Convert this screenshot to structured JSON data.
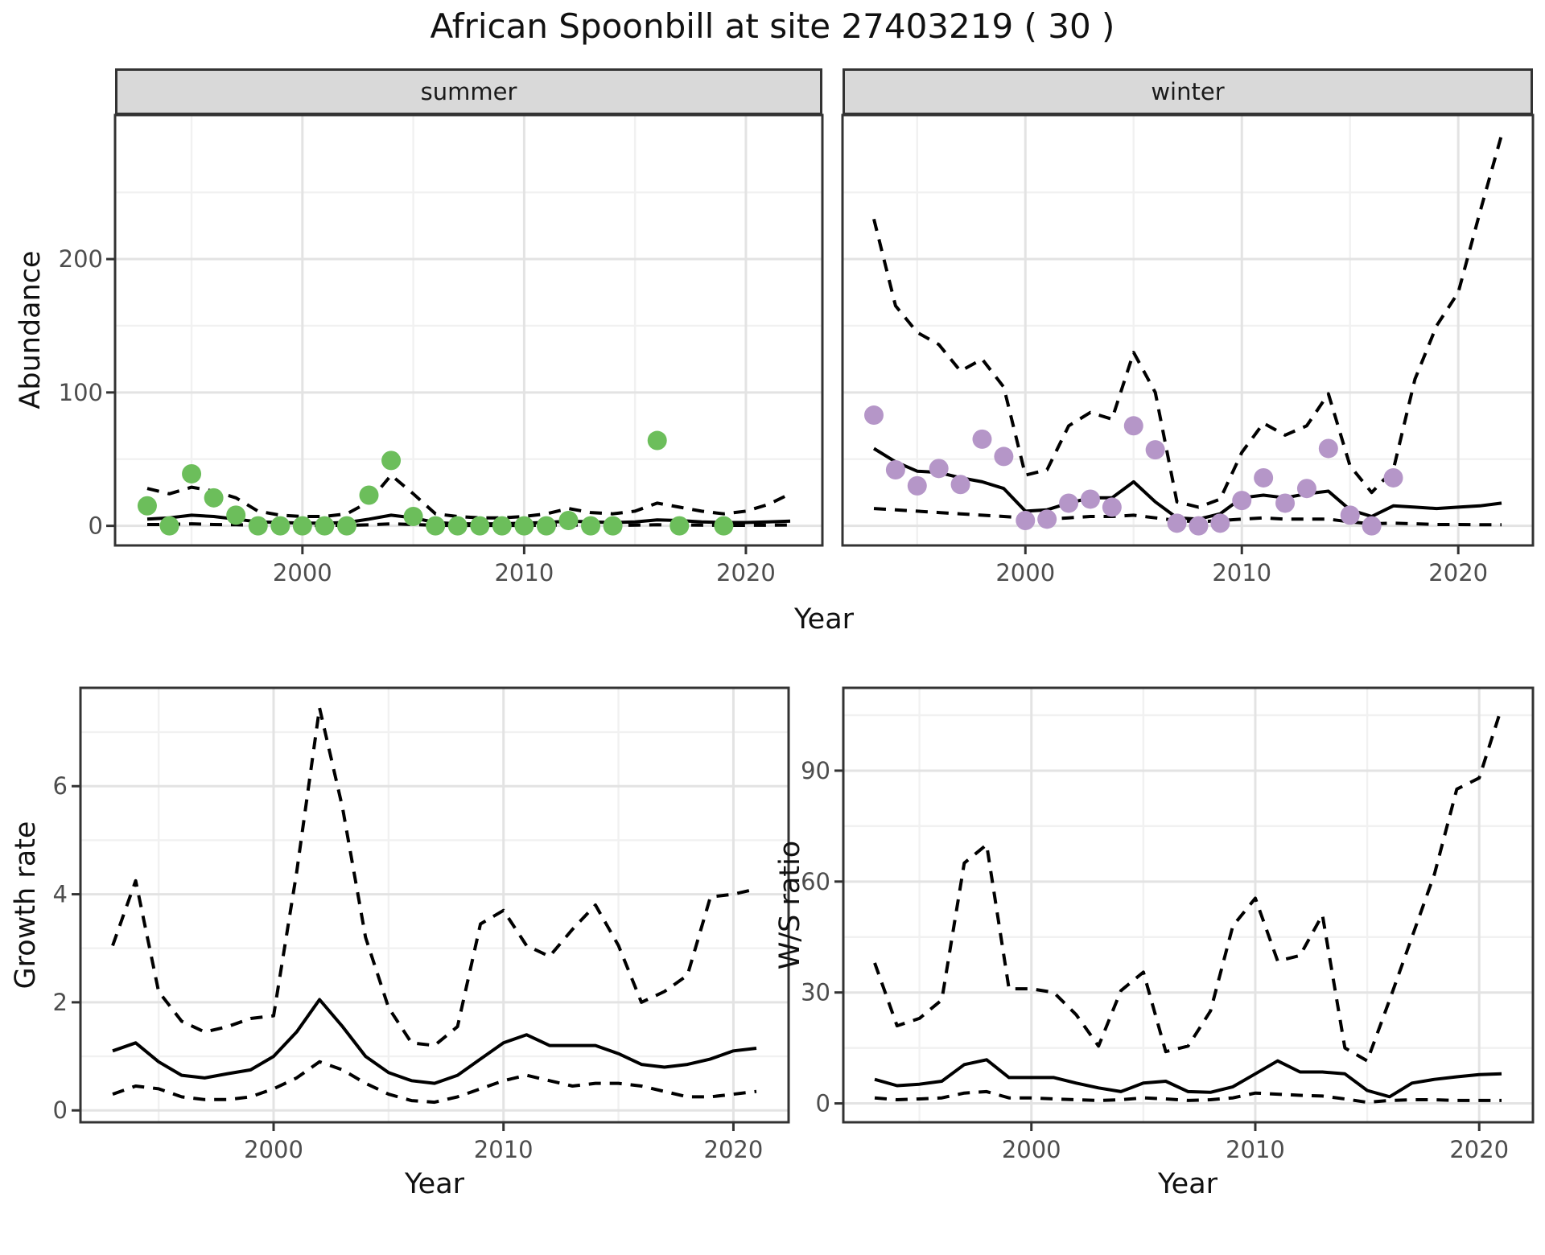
{
  "title": "African Spoonbill at site 27403219 ( 30 )",
  "colors": {
    "summer_point": "#6CBE5B",
    "winter_point": "#B596C8",
    "strip_fill": "#D9D9D9",
    "panel_border": "#333333",
    "grid_major": "#E3E3E3",
    "grid_minor": "#F1F1F1",
    "line": "#000000",
    "tick_text": "#4D4D4D"
  },
  "chart_data": [
    {
      "id": "abundance-summer",
      "type": "scatter",
      "facet": "summer",
      "xlabel": "Year",
      "ylabel": "Abundance",
      "xlim": [
        1991.55,
        2023.45
      ],
      "ylim": [
        -14.7,
        308
      ],
      "x_major": [
        2000,
        2010,
        2020
      ],
      "x_minor": [
        1995,
        2005,
        2015
      ],
      "y_major": [
        0,
        100,
        200
      ],
      "y_minor": [
        50,
        150,
        250
      ],
      "grid": true,
      "legend": "none",
      "point_color": "#6CBE5B",
      "points": [
        [
          1993,
          15
        ],
        [
          1994,
          0
        ],
        [
          1995,
          39
        ],
        [
          1996,
          21
        ],
        [
          1997,
          8
        ],
        [
          1998,
          0
        ],
        [
          1999,
          0
        ],
        [
          2000,
          0
        ],
        [
          2001,
          0
        ],
        [
          2002,
          0
        ],
        [
          2003,
          23
        ],
        [
          2004,
          49
        ],
        [
          2005,
          7
        ],
        [
          2006,
          0
        ],
        [
          2007,
          0
        ],
        [
          2008,
          0
        ],
        [
          2009,
          0
        ],
        [
          2010,
          0
        ],
        [
          2011,
          0
        ],
        [
          2012,
          4
        ],
        [
          2013,
          0
        ],
        [
          2014,
          0
        ],
        [
          2016,
          64
        ],
        [
          2017,
          0
        ],
        [
          2019,
          0
        ]
      ],
      "years": [
        1993,
        1994,
        1995,
        1996,
        1997,
        1998,
        1999,
        2000,
        2001,
        2002,
        2003,
        2004,
        2005,
        2006,
        2007,
        2008,
        2009,
        2010,
        2011,
        2012,
        2013,
        2014,
        2015,
        2016,
        2017,
        2018,
        2019,
        2020,
        2021,
        2022
      ],
      "lines": {
        "fit": {
          "style": "solid",
          "values": [
            5,
            6,
            8,
            7,
            5,
            3,
            2.5,
            2,
            2,
            2.5,
            5,
            8,
            6,
            2.5,
            1.5,
            1.5,
            1.5,
            2,
            2.5,
            3.5,
            3,
            2.5,
            3,
            4.5,
            4,
            3,
            2.5,
            2.5,
            3,
            3.5
          ]
        },
        "upper": {
          "style": "dashed",
          "values": [
            28,
            24,
            29,
            26,
            21,
            11,
            8,
            7,
            7,
            9,
            18,
            38,
            24,
            9,
            7,
            6,
            6,
            7,
            9,
            13,
            10,
            9,
            11,
            17,
            14,
            11,
            9,
            11,
            16,
            24
          ]
        },
        "lower": {
          "style": "dashed",
          "values": [
            1,
            1,
            1.5,
            1,
            0.8,
            0.5,
            0.4,
            0.3,
            0.3,
            0.4,
            0.8,
            1.5,
            1,
            0.4,
            0.3,
            0.3,
            0.3,
            0.3,
            0.4,
            0.6,
            0.5,
            0.4,
            0.5,
            0.8,
            0.7,
            0.5,
            0.4,
            0.4,
            0.5,
            0.6
          ]
        }
      }
    },
    {
      "id": "abundance-winter",
      "type": "scatter",
      "facet": "winter",
      "xlabel": "Year",
      "ylabel": "Abundance",
      "xlim": [
        1991.55,
        2023.45
      ],
      "ylim": [
        -14.7,
        308
      ],
      "x_major": [
        2000,
        2010,
        2020
      ],
      "x_minor": [
        1995,
        2005,
        2015
      ],
      "y_major": [
        0,
        100,
        200
      ],
      "y_minor": [
        50,
        150,
        250
      ],
      "grid": true,
      "legend": "none",
      "point_color": "#B596C8",
      "points": [
        [
          1993,
          83
        ],
        [
          1994,
          42
        ],
        [
          1995,
          30
        ],
        [
          1996,
          43
        ],
        [
          1997,
          31
        ],
        [
          1998,
          65
        ],
        [
          1999,
          52
        ],
        [
          2000,
          4
        ],
        [
          2001,
          5
        ],
        [
          2002,
          17
        ],
        [
          2003,
          20
        ],
        [
          2004,
          14
        ],
        [
          2005,
          75
        ],
        [
          2006,
          57
        ],
        [
          2007,
          2
        ],
        [
          2008,
          0
        ],
        [
          2009,
          2
        ],
        [
          2010,
          19
        ],
        [
          2011,
          36
        ],
        [
          2012,
          17
        ],
        [
          2013,
          28
        ],
        [
          2014,
          58
        ],
        [
          2015,
          8
        ],
        [
          2016,
          0
        ],
        [
          2017,
          36
        ]
      ],
      "years": [
        1993,
        1994,
        1995,
        1996,
        1997,
        1998,
        1999,
        2000,
        2001,
        2002,
        2003,
        2004,
        2005,
        2006,
        2007,
        2008,
        2009,
        2010,
        2011,
        2012,
        2013,
        2014,
        2015,
        2016,
        2017,
        2018,
        2019,
        2020,
        2021,
        2022
      ],
      "lines": {
        "fit": {
          "style": "solid",
          "values": [
            58,
            48,
            41,
            40,
            36,
            33,
            28,
            11,
            12,
            17,
            21,
            21,
            33,
            18,
            6,
            5,
            9,
            21,
            23,
            21,
            24,
            26,
            12,
            7,
            15,
            14,
            13,
            14,
            15,
            17
          ]
        },
        "upper": {
          "style": "dashed",
          "values": [
            230,
            165,
            145,
            136,
            116,
            125,
            104,
            38,
            42,
            75,
            85,
            80,
            130,
            100,
            18,
            14,
            20,
            55,
            77,
            68,
            75,
            99,
            45,
            25,
            42,
            110,
            150,
            175,
            235,
            293
          ]
        },
        "lower": {
          "style": "dashed",
          "values": [
            13,
            12,
            11,
            10,
            9,
            8,
            7,
            6,
            5,
            6,
            7,
            7,
            8,
            6,
            4,
            3,
            4,
            5,
            6,
            5,
            5,
            5,
            3,
            1.5,
            2,
            1.5,
            1,
            1,
            0.8,
            0.8
          ]
        }
      }
    },
    {
      "id": "growth-rate",
      "type": "line",
      "facet": "",
      "xlabel": "Year",
      "ylabel": "Growth rate",
      "xlim": [
        1991.6,
        2022.4
      ],
      "ylim": [
        -0.22,
        7.82
      ],
      "x_major": [
        2000,
        2010,
        2020
      ],
      "x_minor": [
        1995,
        2005,
        2015
      ],
      "y_major": [
        0,
        2,
        4,
        6
      ],
      "y_minor": [
        1,
        3,
        5,
        7
      ],
      "grid": true,
      "legend": "none",
      "point_color": "",
      "points": [],
      "years": [
        1993,
        1994,
        1995,
        1996,
        1997,
        1998,
        1999,
        2000,
        2001,
        2002,
        2003,
        2004,
        2005,
        2006,
        2007,
        2008,
        2009,
        2010,
        2011,
        2012,
        2013,
        2014,
        2015,
        2016,
        2017,
        2018,
        2019,
        2020,
        2021
      ],
      "lines": {
        "fit": {
          "style": "solid",
          "values": [
            1.1,
            1.25,
            0.9,
            0.65,
            0.6,
            0.68,
            0.75,
            1.0,
            1.45,
            2.05,
            1.55,
            1.0,
            0.7,
            0.55,
            0.5,
            0.65,
            0.95,
            1.25,
            1.4,
            1.2,
            1.2,
            1.2,
            1.05,
            0.85,
            0.8,
            0.85,
            0.95,
            1.1,
            1.15
          ]
        },
        "upper": {
          "style": "dashed",
          "values": [
            3.05,
            4.25,
            2.2,
            1.65,
            1.45,
            1.55,
            1.7,
            1.75,
            4.4,
            7.45,
            5.6,
            3.2,
            1.9,
            1.25,
            1.2,
            1.55,
            3.45,
            3.7,
            3.05,
            2.85,
            3.35,
            3.8,
            3.05,
            2.0,
            2.2,
            2.5,
            3.95,
            4.0,
            4.1
          ]
        },
        "lower": {
          "style": "dashed",
          "values": [
            0.3,
            0.45,
            0.4,
            0.25,
            0.2,
            0.2,
            0.25,
            0.4,
            0.6,
            0.9,
            0.75,
            0.5,
            0.3,
            0.18,
            0.15,
            0.25,
            0.4,
            0.55,
            0.65,
            0.55,
            0.45,
            0.5,
            0.5,
            0.45,
            0.35,
            0.25,
            0.25,
            0.3,
            0.35
          ]
        }
      }
    },
    {
      "id": "ws-ratio",
      "type": "line",
      "facet": "",
      "xlabel": "Year",
      "ylabel": "W/S ratio",
      "xlim": [
        1991.6,
        2022.4
      ],
      "ylim": [
        -5.1,
        112.4
      ],
      "x_major": [
        2000,
        2010,
        2020
      ],
      "x_minor": [
        1995,
        2005,
        2015
      ],
      "y_major": [
        0,
        30,
        60,
        90
      ],
      "y_minor": [
        15,
        45,
        75,
        105
      ],
      "grid": true,
      "legend": "none",
      "point_color": "",
      "points": [],
      "years": [
        1993,
        1994,
        1995,
        1996,
        1997,
        1998,
        1999,
        2000,
        2001,
        2002,
        2003,
        2004,
        2005,
        2006,
        2007,
        2008,
        2009,
        2010,
        2011,
        2012,
        2013,
        2014,
        2015,
        2016,
        2017,
        2018,
        2019,
        2020,
        2021
      ],
      "lines": {
        "fit": {
          "style": "solid",
          "values": [
            6.5,
            4.8,
            5.2,
            6,
            10.5,
            11.8,
            7,
            7,
            7,
            5.5,
            4.2,
            3.2,
            5.5,
            6,
            3.2,
            3,
            4.5,
            8,
            11.5,
            8.5,
            8.5,
            8,
            3.5,
            1.8,
            5.5,
            6.5,
            7.2,
            7.8,
            8
          ]
        },
        "upper": {
          "style": "dashed",
          "values": [
            38,
            21,
            23,
            28,
            65,
            70,
            31,
            31,
            30,
            24,
            15.5,
            30.5,
            35.5,
            14,
            15.5,
            25,
            48,
            55.5,
            38.5,
            40,
            51,
            15,
            11.5,
            28,
            45,
            62,
            85,
            88,
            107
          ]
        },
        "lower": {
          "style": "dashed",
          "values": [
            1.5,
            1,
            1.2,
            1.5,
            2.8,
            3.2,
            1.5,
            1.5,
            1.2,
            1,
            0.8,
            1,
            1.5,
            1.2,
            0.8,
            1,
            1.5,
            2.8,
            2.5,
            2.2,
            2,
            1.2,
            0.3,
            0.8,
            1,
            1,
            0.8,
            0.8,
            0.8
          ]
        }
      }
    }
  ]
}
